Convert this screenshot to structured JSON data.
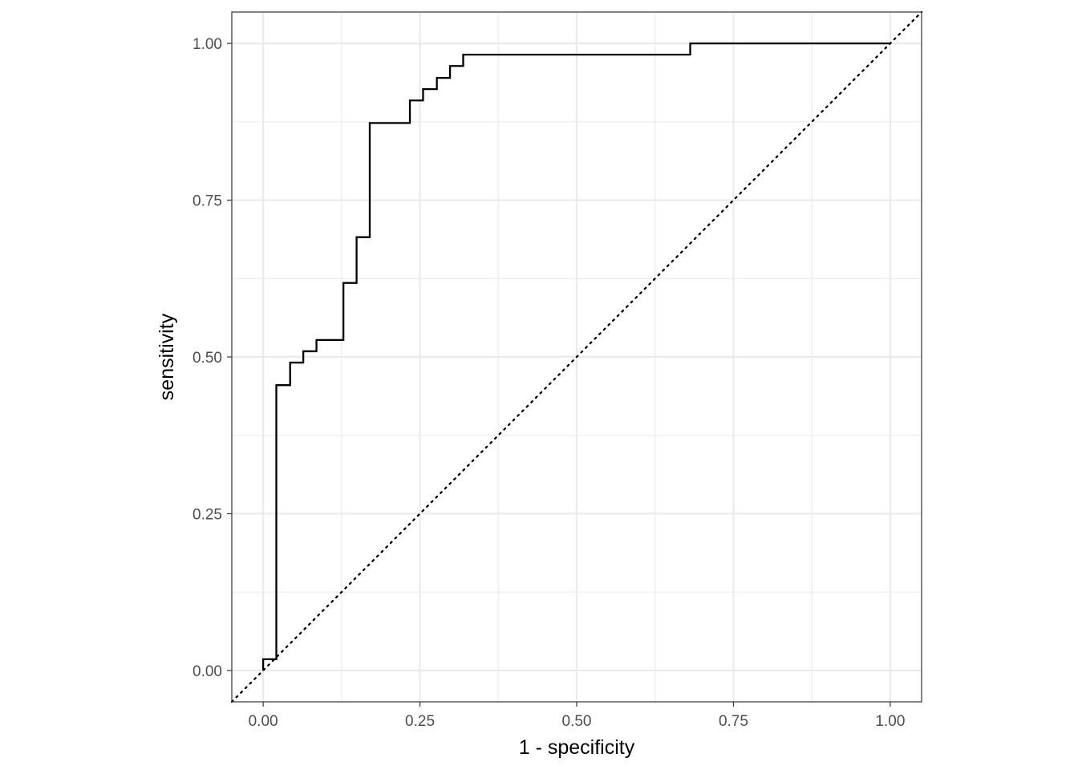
{
  "chart_data": {
    "type": "line",
    "title": "",
    "xlabel": "1 - specificity",
    "ylabel": "sensitivity",
    "xlim": [
      -0.05,
      1.05
    ],
    "ylim": [
      -0.05,
      1.05
    ],
    "x_ticks": [
      "0.00",
      "0.25",
      "0.50",
      "0.75",
      "1.00"
    ],
    "y_ticks": [
      "0.00",
      "0.25",
      "0.50",
      "0.75",
      "1.00"
    ],
    "x_tick_values": [
      0,
      0.25,
      0.5,
      0.75,
      1
    ],
    "y_tick_values": [
      0,
      0.25,
      0.5,
      0.75,
      1
    ],
    "grid": true,
    "theme": "bw",
    "series": [
      {
        "style": "step",
        "color": "#000000",
        "x": [
          0.0,
          0.0,
          0.021,
          0.021,
          0.043,
          0.043,
          0.064,
          0.064,
          0.085,
          0.085,
          0.128,
          0.128,
          0.149,
          0.149,
          0.17,
          0.17,
          0.234,
          0.234,
          0.255,
          0.255,
          0.277,
          0.277,
          0.298,
          0.298,
          0.319,
          0.319,
          0.681,
          0.681,
          1.0
        ],
        "y": [
          0.0,
          0.018,
          0.018,
          0.455,
          0.455,
          0.491,
          0.491,
          0.509,
          0.509,
          0.527,
          0.527,
          0.618,
          0.618,
          0.691,
          0.691,
          0.873,
          0.873,
          0.909,
          0.909,
          0.927,
          0.927,
          0.945,
          0.945,
          0.964,
          0.964,
          0.982,
          0.982,
          1.0,
          1.0
        ]
      }
    ],
    "reference_line": {
      "style": "dotted",
      "color": "#000000",
      "slope": 1,
      "intercept": 0
    }
  }
}
